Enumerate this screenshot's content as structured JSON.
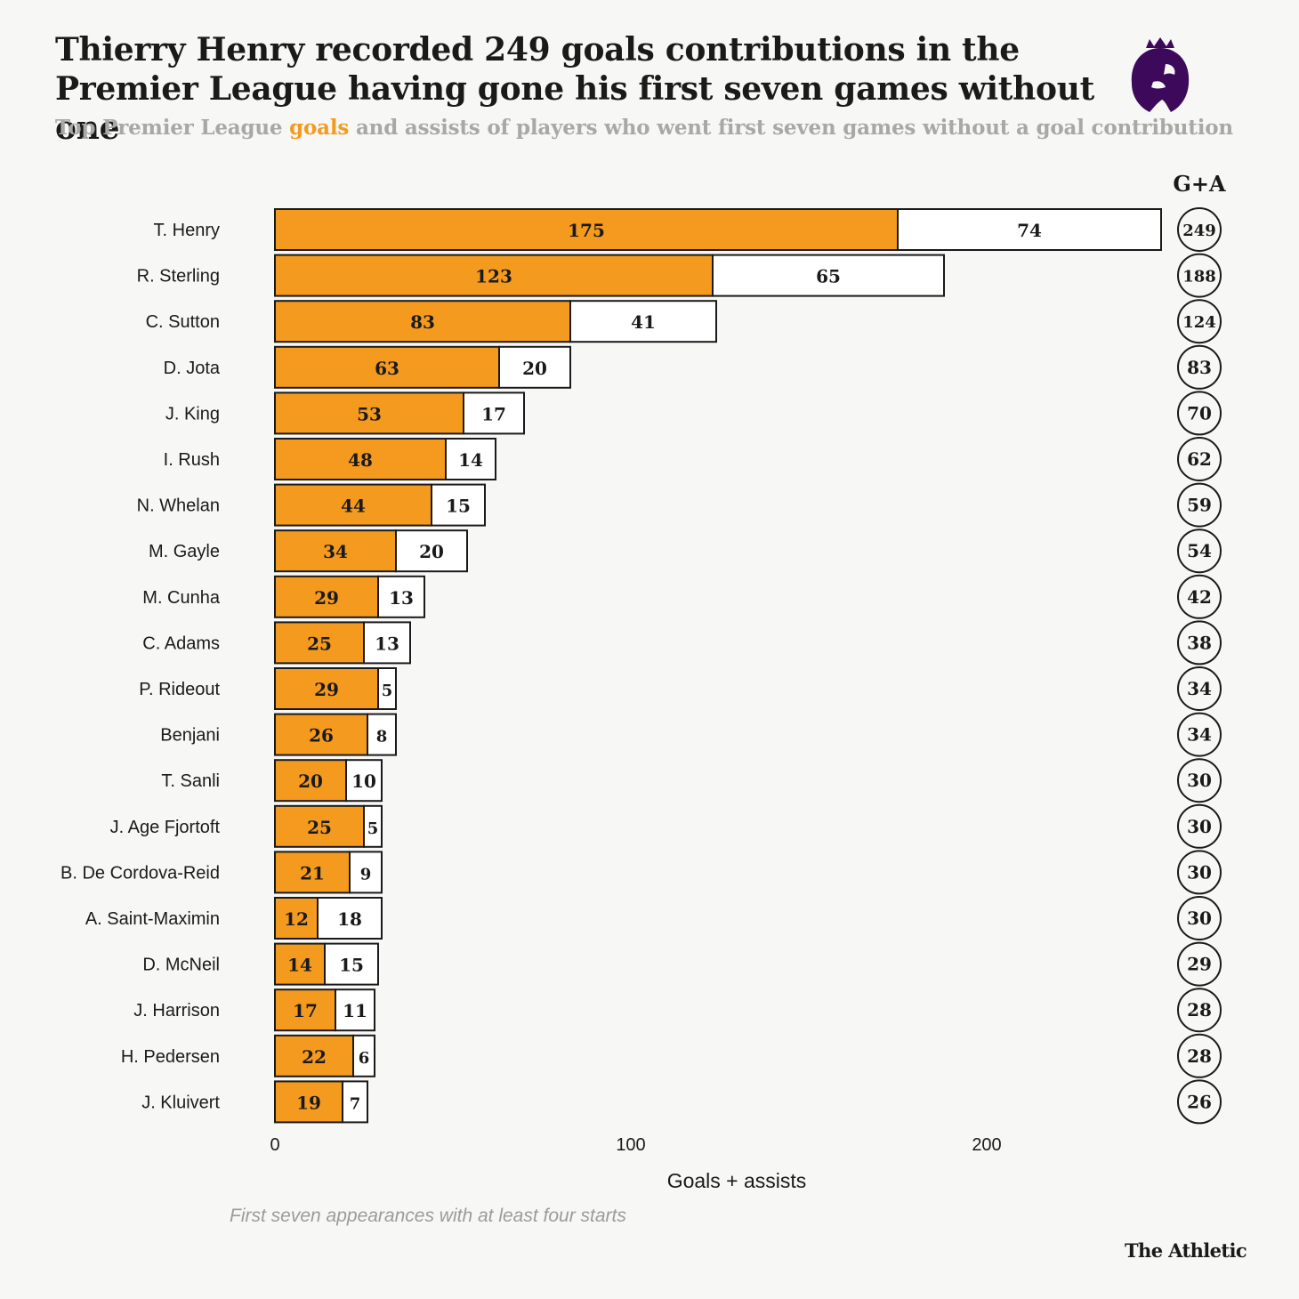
{
  "title": {
    "line1": "Thierry Henry recorded 249 goals contributions in the",
    "line2": "Premier League having gone his first seven games without one"
  },
  "subtitle": {
    "before": "Top Premier League ",
    "highlight": "goals",
    "after": " and assists of players who went first seven games without a goal contribution"
  },
  "logo_icon": "premier-league-lion-icon",
  "chart_data": {
    "type": "bar",
    "orientation": "horizontal",
    "stacked": true,
    "categories": [
      "T. Henry",
      "R. Sterling",
      "C. Sutton",
      "D. Jota",
      "J. King",
      "I. Rush",
      "N. Whelan",
      "M. Gayle",
      "M. Cunha",
      "C. Adams",
      "P. Rideout",
      "Benjani",
      "T. Sanli",
      "J. Age Fjortoft",
      "B. De Cordova-Reid",
      "A. Saint-Maximin",
      "D. McNeil",
      "J. Harrison",
      "H. Pedersen",
      "J. Kluivert"
    ],
    "series": [
      {
        "values": [
          175,
          123,
          83,
          63,
          53,
          48,
          44,
          34,
          29,
          25,
          29,
          26,
          20,
          25,
          21,
          12,
          14,
          17,
          22,
          19
        ],
        "color": "#f39a1f"
      },
      {
        "values": [
          74,
          65,
          41,
          20,
          17,
          14,
          15,
          20,
          13,
          13,
          5,
          8,
          10,
          5,
          9,
          18,
          15,
          11,
          6,
          7
        ],
        "color": "#ffffff"
      }
    ],
    "totals_header": "G+A",
    "totals": [
      249,
      188,
      124,
      83,
      70,
      62,
      59,
      54,
      42,
      38,
      34,
      34,
      30,
      30,
      30,
      30,
      29,
      28,
      28,
      26
    ],
    "xlabel": "Goals + assists",
    "xticks": [
      0,
      100,
      200
    ],
    "xlim": [
      0,
      249
    ],
    "grid": false
  },
  "footnote": "First seven appearances with at least four starts",
  "brand": "The Athletic"
}
